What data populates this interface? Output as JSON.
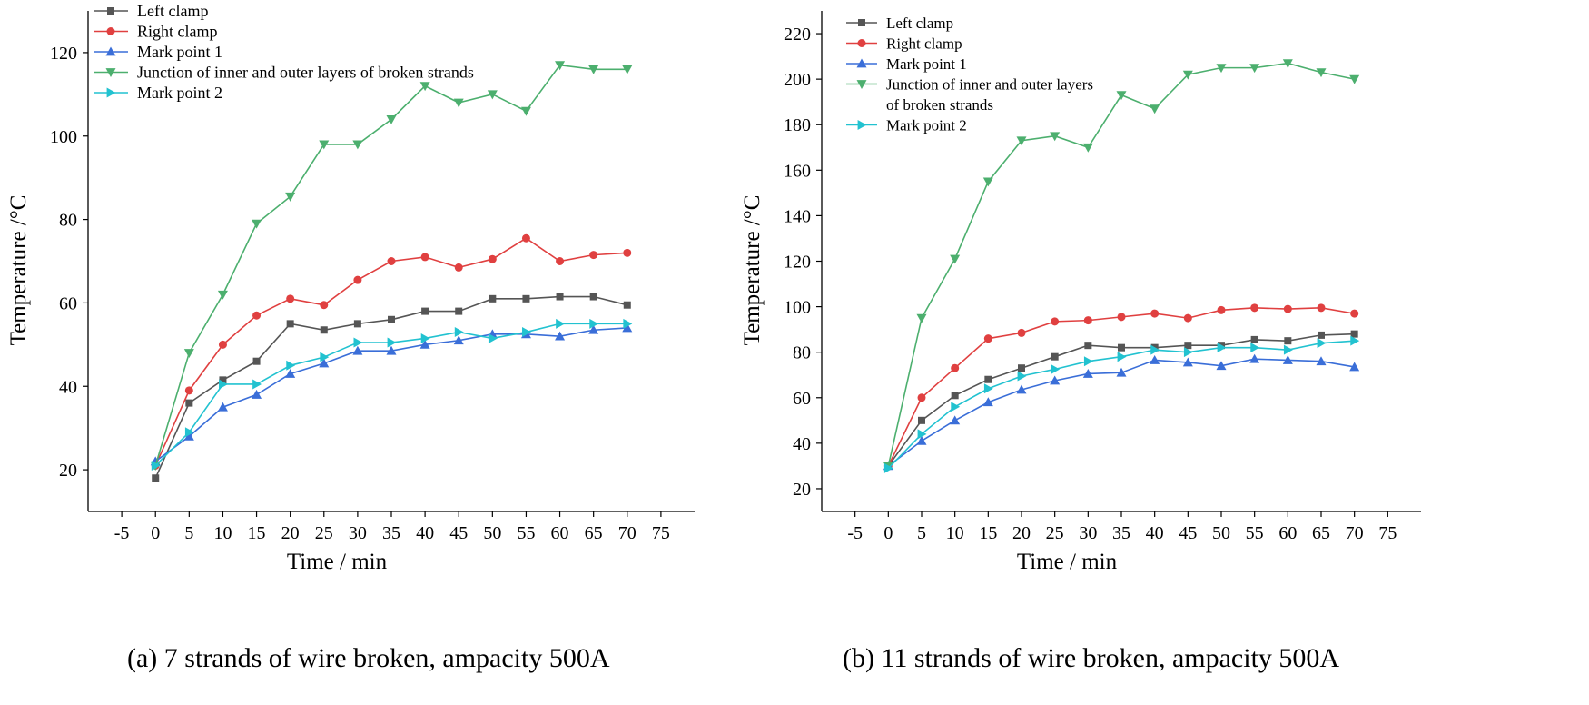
{
  "chart_data": [
    {
      "type": "line",
      "xlabel": "Time / min",
      "ylabel": "Temperature /°C",
      "caption": "(a) 7 strands of wire broken, ampacity 500A",
      "xlim": [
        -10,
        80
      ],
      "ylim": [
        10,
        130
      ],
      "x_ticks": [
        -5,
        0,
        5,
        10,
        15,
        20,
        25,
        30,
        35,
        40,
        45,
        50,
        55,
        60,
        65,
        70,
        75
      ],
      "y_ticks": [
        20,
        40,
        60,
        80,
        100,
        120
      ],
      "legend": "top-left",
      "legend_lines": [
        [
          "Left clamp"
        ],
        [
          "Right clamp"
        ],
        [
          "Mark point 1"
        ],
        [
          "Junction of inner and outer layers of broken strands"
        ],
        [
          "Mark point 2"
        ]
      ],
      "x": [
        0,
        5,
        10,
        15,
        20,
        25,
        30,
        35,
        40,
        45,
        50,
        55,
        60,
        65,
        70
      ],
      "series": [
        {
          "name": "Left clamp",
          "color": "#555555",
          "marker": "square",
          "values": [
            18,
            36,
            41.5,
            46,
            55,
            53.5,
            55,
            56,
            58,
            58,
            61,
            61,
            61.5,
            61.5,
            59.5
          ]
        },
        {
          "name": "Right clamp",
          "color": "#e04040",
          "marker": "circle",
          "values": [
            21,
            39,
            50,
            57,
            61,
            59.5,
            65.5,
            70,
            71,
            68.5,
            70.5,
            75.5,
            70,
            71.5,
            72
          ]
        },
        {
          "name": "Mark point 1",
          "color": "#3a6ed8",
          "marker": "triangle-up",
          "values": [
            22,
            28,
            35,
            38,
            43,
            45.5,
            48.5,
            48.5,
            50,
            51,
            52.5,
            52.5,
            52,
            53.5,
            54
          ]
        },
        {
          "name": "Junction of inner and outer layers of broken strands",
          "color": "#4caf6e",
          "marker": "triangle-down",
          "values": [
            21,
            48,
            62,
            79,
            85.5,
            98,
            98,
            104,
            112,
            108,
            110,
            106,
            117,
            116,
            116
          ]
        },
        {
          "name": "Mark point 2",
          "color": "#22c2d0",
          "marker": "triangle-right",
          "values": [
            21,
            29,
            40.5,
            40.5,
            45,
            47,
            50.5,
            50.5,
            51.5,
            53,
            51.5,
            53,
            55,
            55,
            55
          ]
        }
      ]
    },
    {
      "type": "line",
      "xlabel": "Time / min",
      "ylabel": "Temperature /°C",
      "caption": "(b) 11 strands of wire broken, ampacity 500A",
      "xlim": [
        -10,
        80
      ],
      "ylim": [
        10,
        230
      ],
      "x_ticks": [
        -5,
        0,
        5,
        10,
        15,
        20,
        25,
        30,
        35,
        40,
        45,
        50,
        55,
        60,
        65,
        70,
        75
      ],
      "y_ticks": [
        20,
        40,
        60,
        80,
        100,
        120,
        140,
        160,
        180,
        200,
        220
      ],
      "legend": "top-left",
      "legend_lines": [
        [
          "Left clamp"
        ],
        [
          "Right clamp"
        ],
        [
          "Mark point 1"
        ],
        [
          "Junction of inner and outer layers",
          "of broken strands"
        ],
        [
          "Mark point 2"
        ]
      ],
      "x": [
        0,
        5,
        10,
        15,
        20,
        25,
        30,
        35,
        40,
        45,
        50,
        55,
        60,
        65,
        70
      ],
      "series": [
        {
          "name": "Left clamp",
          "color": "#555555",
          "marker": "square",
          "values": [
            30,
            50,
            61,
            68,
            73,
            78,
            83,
            82,
            82,
            83,
            83,
            85.5,
            85,
            87.5,
            88
          ]
        },
        {
          "name": "Right clamp",
          "color": "#e04040",
          "marker": "circle",
          "values": [
            30,
            60,
            73,
            86,
            88.5,
            93.5,
            94,
            95.5,
            97,
            95,
            98.5,
            99.5,
            99,
            99.5,
            97
          ]
        },
        {
          "name": "Mark point 1",
          "color": "#3a6ed8",
          "marker": "triangle-up",
          "values": [
            30,
            41,
            50,
            58,
            63.5,
            67.5,
            70.5,
            71,
            76.5,
            75.5,
            74,
            77,
            76.5,
            76,
            73.5
          ]
        },
        {
          "name": "Junction of inner and outer layers of broken strands",
          "color": "#4caf6e",
          "marker": "triangle-down",
          "values": [
            30,
            95,
            121,
            155,
            173,
            175,
            170,
            193,
            187,
            202,
            205,
            205,
            207,
            203,
            200
          ]
        },
        {
          "name": "Mark point 2",
          "color": "#22c2d0",
          "marker": "triangle-right",
          "values": [
            29,
            44,
            56,
            64,
            69.5,
            72.5,
            76,
            78,
            81,
            80,
            82,
            82,
            81,
            84,
            85
          ]
        }
      ]
    }
  ]
}
